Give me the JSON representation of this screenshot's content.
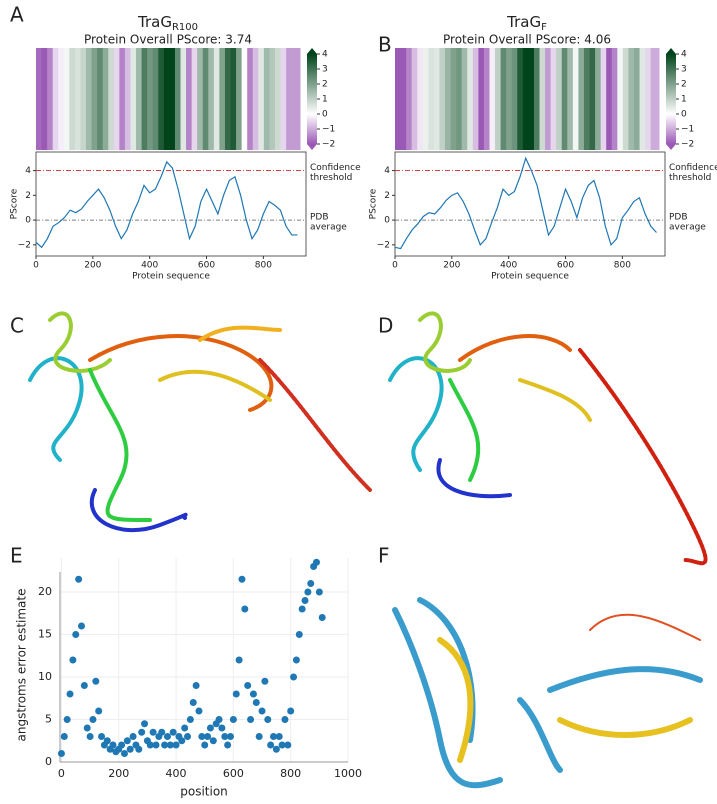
{
  "structure_panels": {
    "labels": [
      "C",
      "D",
      "F"
    ]
  },
  "chart_data": [
    {
      "type": "pscore",
      "label": "A",
      "title": "TraG",
      "title_subscript": "R100",
      "subtitle": "Protein Overall PScore: 3.74",
      "x": [
        0,
        20,
        40,
        60,
        80,
        100,
        120,
        140,
        160,
        180,
        200,
        220,
        240,
        260,
        280,
        300,
        320,
        340,
        360,
        380,
        400,
        420,
        440,
        460,
        480,
        500,
        520,
        540,
        560,
        580,
        600,
        620,
        640,
        660,
        680,
        700,
        720,
        740,
        760,
        780,
        800,
        820,
        840,
        860,
        880,
        900,
        920
      ],
      "values": [
        -1.8,
        -2.2,
        -1.5,
        -0.5,
        -0.2,
        0.2,
        0.8,
        0.6,
        0.9,
        1.5,
        2.0,
        2.5,
        1.8,
        0.8,
        -0.5,
        -1.5,
        -0.8,
        0.5,
        1.5,
        2.8,
        2.2,
        2.5,
        3.5,
        4.7,
        4.2,
        2.5,
        0.5,
        -1.5,
        -0.5,
        1.5,
        2.5,
        1.5,
        0.5,
        2.0,
        3.2,
        3.5,
        2.0,
        0,
        -1.5,
        -0.8,
        0.5,
        1.5,
        1.2,
        0.8,
        -0.5,
        -1.2,
        -1.2
      ],
      "color": "#1f77b4",
      "heatmap_colors": {
        "low": "#9b59b6",
        "mid": "#ffffff",
        "high": "#00441b"
      },
      "clim": [
        -2,
        4
      ],
      "cticks": [
        4,
        3,
        2,
        1,
        0,
        {
          "value": -1,
          "label": "−1"
        },
        {
          "value": -2,
          "label": "−2"
        }
      ],
      "xlim": [
        0,
        950
      ],
      "xticks": [
        0,
        200,
        400,
        600,
        800
      ],
      "ylim": [
        -2.9,
        5.5
      ],
      "yticks": [
        {
          "value": -2,
          "label": "−2"
        },
        0,
        2,
        4
      ],
      "xlabel": "Protein sequence",
      "ylabel": "PScore",
      "threshold": {
        "value": 4,
        "label": [
          "Confidence",
          "threshold"
        ],
        "color": "#d62728"
      },
      "average": {
        "value": 0,
        "label": [
          "PDB",
          "average"
        ],
        "color": "#555555"
      }
    },
    {
      "type": "pscore",
      "label": "B",
      "title": "TraG",
      "title_subscript": "F",
      "subtitle": "Protein Overall PScore: 4.06",
      "x": [
        0,
        20,
        40,
        60,
        80,
        100,
        120,
        140,
        160,
        180,
        200,
        220,
        240,
        260,
        280,
        300,
        320,
        340,
        360,
        380,
        400,
        420,
        440,
        460,
        480,
        500,
        520,
        540,
        560,
        580,
        600,
        620,
        640,
        660,
        680,
        700,
        720,
        740,
        760,
        780,
        800,
        820,
        840,
        860,
        880,
        900,
        920
      ],
      "values": [
        -2.2,
        -2.3,
        -1.5,
        -0.8,
        -0.3,
        0.3,
        0.6,
        0.5,
        1.0,
        1.6,
        2.0,
        2.2,
        1.5,
        0.5,
        -0.8,
        -2.0,
        -1.5,
        -0.2,
        1.0,
        2.5,
        2.0,
        2.3,
        3.5,
        5.0,
        4.0,
        2.8,
        0.8,
        -1.2,
        -0.5,
        1.0,
        2.5,
        1.5,
        0.2,
        1.8,
        2.8,
        3.2,
        1.8,
        -0.5,
        -2.0,
        -1.5,
        0.2,
        0.8,
        1.5,
        1.8,
        0.5,
        -0.5,
        -1.0
      ],
      "color": "#1f77b4",
      "heatmap_colors": {
        "low": "#9b59b6",
        "mid": "#ffffff",
        "high": "#00441b"
      },
      "clim": [
        -2,
        4
      ],
      "cticks": [
        4,
        3,
        2,
        1,
        0,
        {
          "value": -1,
          "label": "−1"
        },
        {
          "value": -2,
          "label": "−2"
        }
      ],
      "xlim": [
        0,
        950
      ],
      "xticks": [
        0,
        200,
        400,
        600,
        800
      ],
      "ylim": [
        -2.9,
        5.5
      ],
      "yticks": [
        {
          "value": -2,
          "label": "−2"
        },
        0,
        2,
        4
      ],
      "xlabel": "Protein sequence",
      "ylabel": "PScore",
      "threshold": {
        "value": 4,
        "label": [
          "Confidence",
          "threshold"
        ],
        "color": "#d62728"
      },
      "average": {
        "value": 0,
        "label": [
          "PDB",
          "average"
        ],
        "color": "#555555"
      }
    },
    {
      "type": "scatter",
      "label": "E",
      "x": [
        0,
        10,
        20,
        30,
        40,
        50,
        60,
        70,
        80,
        90,
        100,
        110,
        120,
        130,
        140,
        150,
        160,
        170,
        180,
        190,
        200,
        210,
        220,
        230,
        240,
        250,
        260,
        270,
        280,
        290,
        300,
        310,
        320,
        330,
        340,
        350,
        360,
        370,
        380,
        390,
        400,
        410,
        420,
        430,
        440,
        450,
        460,
        470,
        480,
        490,
        500,
        510,
        520,
        530,
        540,
        550,
        560,
        570,
        580,
        590,
        600,
        610,
        620,
        630,
        640,
        650,
        660,
        670,
        680,
        690,
        700,
        710,
        720,
        730,
        740,
        750,
        760,
        770,
        780,
        790,
        800,
        810,
        820,
        830,
        840,
        850,
        860,
        870,
        880,
        890,
        900,
        910
      ],
      "values": [
        1,
        3,
        5,
        8,
        12,
        15,
        21.5,
        16,
        9,
        4,
        3,
        5,
        9.5,
        6,
        3,
        2,
        2.5,
        1.5,
        2,
        1.2,
        1.5,
        2,
        1,
        2.5,
        1.5,
        3,
        2,
        1.5,
        3.5,
        4.5,
        2.5,
        2,
        3.5,
        2,
        3,
        3.5,
        2,
        3,
        2,
        3.5,
        2,
        3,
        2.5,
        4,
        3,
        5,
        7,
        9,
        6,
        3,
        2,
        3,
        4,
        2.5,
        4.5,
        5,
        4,
        3,
        2,
        3,
        5,
        8,
        12,
        21.5,
        18,
        9,
        5,
        8,
        7,
        3,
        6,
        9.5,
        5,
        2,
        3,
        1.5,
        3,
        2,
        5,
        2,
        6,
        10,
        12,
        15,
        18,
        19,
        20,
        21,
        23,
        23.5,
        20,
        17
      ],
      "color": "#1f77b4",
      "xlim": [
        -5,
        1000
      ],
      "xticks": [
        0,
        200,
        400,
        600,
        800,
        1000
      ],
      "ylim": [
        0,
        24
      ],
      "yticks": [
        0,
        5,
        10,
        15,
        20
      ],
      "xlabel": "position",
      "ylabel": "angstroms error estimate",
      "grid": true
    }
  ]
}
